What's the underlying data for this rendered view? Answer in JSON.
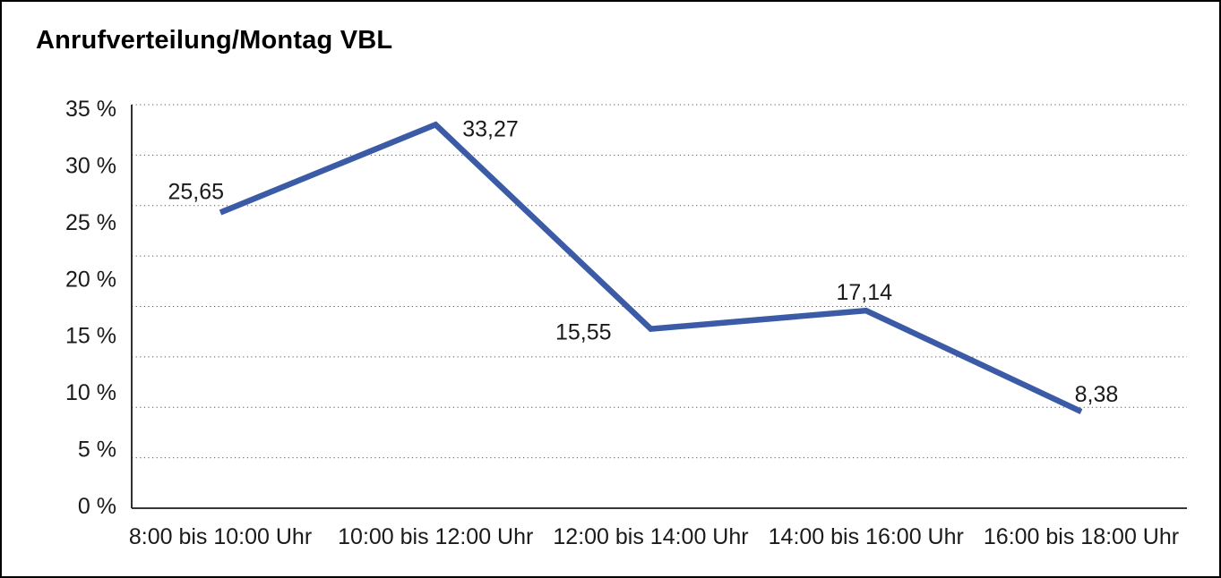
{
  "window": {
    "background_color": "#ffffff",
    "border_color": "#000000"
  },
  "chart_data": {
    "type": "line",
    "title": "Anrufverteilung/Montag VBL",
    "categories": [
      "8:00 bis 10:00 Uhr",
      "10:00 bis 12:00 Uhr",
      "12:00 bis 14:00 Uhr",
      "14:00 bis 16:00 Uhr",
      "16:00 bis 18:00 Uhr"
    ],
    "values": [
      25.65,
      33.27,
      15.55,
      17.14,
      8.38
    ],
    "data_labels": [
      "25,65",
      "33,27",
      "15,55",
      "17,14",
      "8,38"
    ],
    "y_ticks": [
      "35 %",
      "30 %",
      "25 %",
      "20 %",
      "15 %",
      "10 %",
      "5 %",
      "0 %"
    ],
    "ylim": [
      0,
      35
    ],
    "xlabel": "",
    "ylabel": "",
    "legend": "none",
    "grid": "horizontal-dotted",
    "y_gridline_count": 9,
    "line_color": "#3B5BA6",
    "axis_color": "#1a1a1a",
    "gridline_color": "#555555",
    "label_color": "#1a1a1a"
  }
}
